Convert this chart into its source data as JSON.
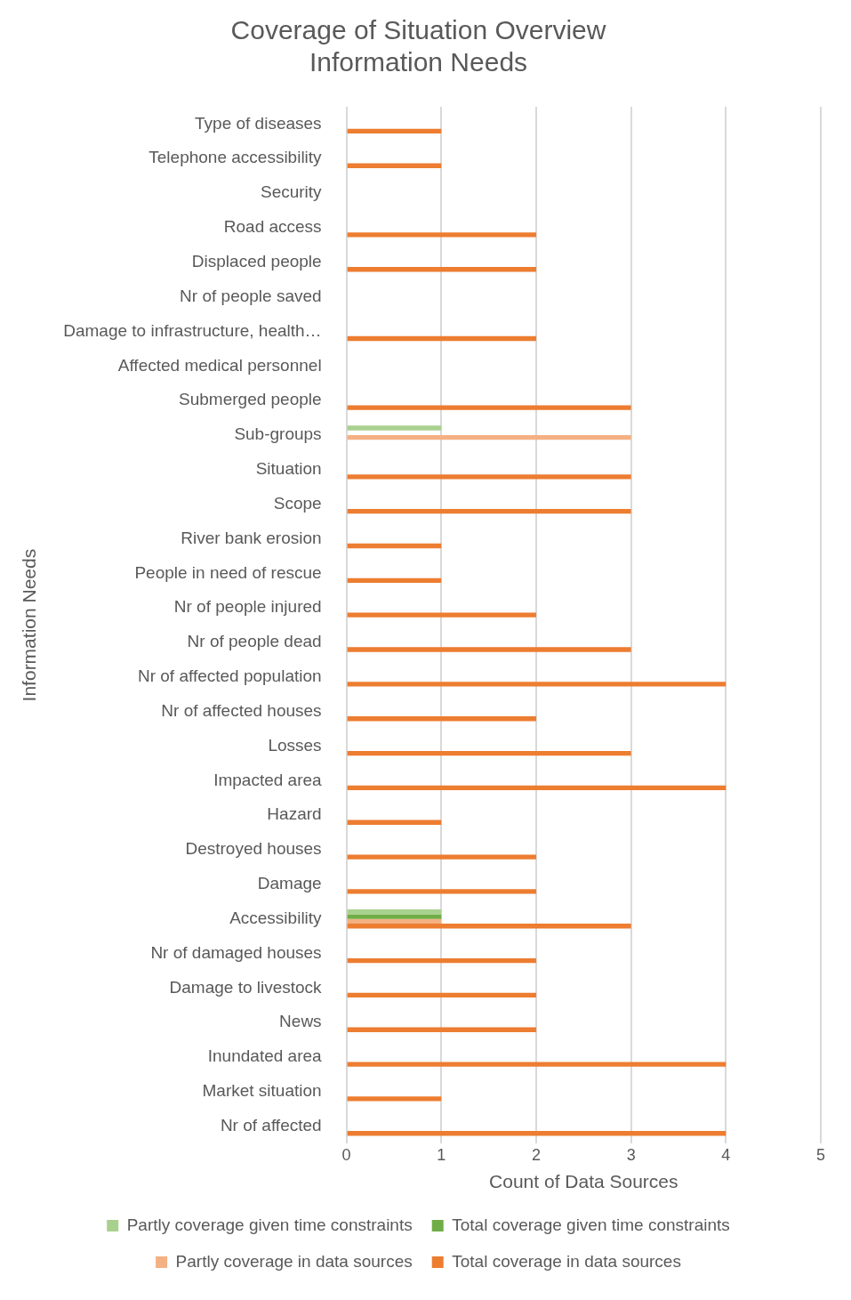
{
  "chart_data": {
    "type": "bar",
    "orientation": "horizontal",
    "title": "Coverage of Situation Overview Information Needs",
    "xlabel": "Count of Data Sources",
    "ylabel": "Information Needs",
    "categories": [
      "Type of diseases",
      "Telephone accessibility",
      "Security",
      "Road access",
      "Displaced people",
      "Nr of people saved",
      "Damage to infrastructure, health…",
      "Affected medical personnel",
      "Submerged people",
      "Sub-groups",
      "Situation",
      "Scope",
      "River bank erosion",
      "People in need of rescue",
      "Nr of people injured",
      "Nr of people dead",
      "Nr of affected population",
      "Nr of affected houses",
      "Losses",
      "Impacted area",
      "Hazard",
      "Destroyed houses",
      "Damage",
      "Accessibility",
      "Nr of damaged houses",
      "Damage to livestock",
      "News",
      "Inundated area",
      "Market situation",
      "Nr of affected"
    ],
    "series": [
      {
        "name": "Partly coverage given time constraints",
        "color": "#a9d18e",
        "values": [
          null,
          null,
          null,
          null,
          null,
          null,
          null,
          null,
          null,
          1,
          null,
          null,
          null,
          null,
          null,
          null,
          null,
          null,
          null,
          null,
          null,
          null,
          null,
          1,
          null,
          null,
          null,
          null,
          null,
          null
        ]
      },
      {
        "name": "Total coverage given time constraints",
        "color": "#70ad47",
        "values": [
          null,
          null,
          null,
          null,
          null,
          null,
          null,
          null,
          null,
          null,
          null,
          null,
          null,
          null,
          null,
          null,
          null,
          null,
          null,
          null,
          null,
          null,
          null,
          1,
          null,
          null,
          null,
          null,
          null,
          null
        ]
      },
      {
        "name": "Partly coverage in data sources",
        "color": "#f4b183",
        "values": [
          null,
          null,
          null,
          null,
          null,
          null,
          null,
          null,
          null,
          3,
          null,
          null,
          null,
          null,
          null,
          null,
          null,
          null,
          null,
          null,
          null,
          null,
          null,
          1,
          null,
          null,
          null,
          null,
          null,
          null
        ]
      },
      {
        "name": "Total coverage in data sources",
        "color": "#ed7d31",
        "values": [
          1,
          1,
          null,
          2,
          2,
          null,
          2,
          null,
          3,
          null,
          3,
          3,
          1,
          1,
          2,
          3,
          4,
          2,
          3,
          4,
          1,
          2,
          2,
          3,
          2,
          2,
          2,
          4,
          1,
          4
        ]
      }
    ],
    "xlim": [
      0,
      5
    ],
    "xticks": [
      0,
      1,
      2,
      3,
      4,
      5
    ],
    "grid": "x",
    "legend": "bottom"
  }
}
